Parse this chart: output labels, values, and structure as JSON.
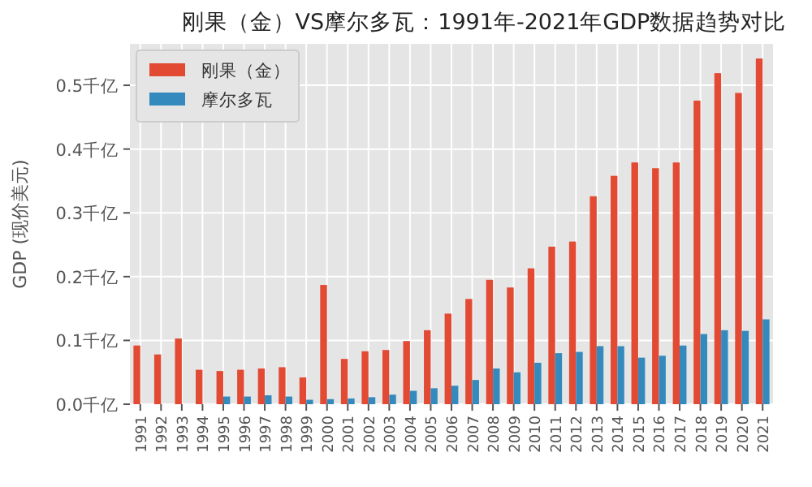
{
  "chart_data": {
    "type": "bar",
    "title": "刚果（金）VS摩尔多瓦：1991年-2021年GDP数据趋势对比",
    "ylabel": "GDP (现价美元)",
    "categories": [
      "1991",
      "1992",
      "1993",
      "1994",
      "1995",
      "1996",
      "1997",
      "1998",
      "1999",
      "2000",
      "2001",
      "2002",
      "2003",
      "2004",
      "2005",
      "2006",
      "2007",
      "2008",
      "2009",
      "2010",
      "2011",
      "2012",
      "2013",
      "2014",
      "2015",
      "2016",
      "2017",
      "2018",
      "2019",
      "2020",
      "2021"
    ],
    "series": [
      {
        "name": "刚果（金）",
        "color": "#e24a33",
        "values": [
          0.092,
          0.078,
          0.103,
          0.054,
          0.052,
          0.054,
          0.056,
          0.058,
          0.042,
          0.187,
          0.071,
          0.083,
          0.085,
          0.099,
          0.116,
          0.142,
          0.165,
          0.195,
          0.183,
          0.213,
          0.247,
          0.255,
          0.326,
          0.358,
          0.379,
          0.37,
          0.379,
          0.476,
          0.519,
          0.488,
          0.542
        ]
      },
      {
        "name": "摩尔多瓦",
        "color": "#348abd",
        "values": [
          null,
          null,
          null,
          null,
          0.012,
          0.012,
          0.014,
          0.012,
          0.007,
          0.008,
          0.009,
          0.011,
          0.015,
          0.021,
          0.025,
          0.029,
          0.038,
          0.056,
          0.05,
          0.065,
          0.08,
          0.082,
          0.091,
          0.091,
          0.073,
          0.076,
          0.092,
          0.11,
          0.116,
          0.115,
          0.133
        ]
      }
    ],
    "ylim": [
      0,
      0.565
    ],
    "yticks": [
      {
        "value": 0,
        "label": "0.0千亿"
      },
      {
        "value": 0.1,
        "label": "0.1千亿"
      },
      {
        "value": 0.2,
        "label": "0.2千亿"
      },
      {
        "value": 0.3,
        "label": "0.3千亿"
      },
      {
        "value": 0.4,
        "label": "0.4千亿"
      },
      {
        "value": 0.5,
        "label": "0.5千亿"
      }
    ],
    "grid": true,
    "legend": "top left"
  }
}
